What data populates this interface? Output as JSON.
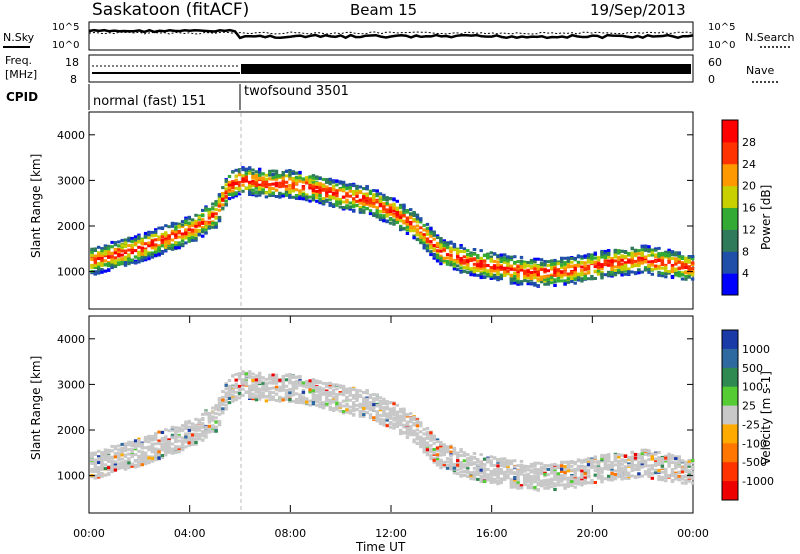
{
  "header": {
    "station": "Saskatoon (fitACF)",
    "beam": "Beam 15",
    "date": "19/Sep/2013"
  },
  "noise_panel": {
    "left_label": "N.Sky",
    "right_label": "N.Search",
    "left_ticks": [
      "10^5",
      "10^0"
    ],
    "right_ticks": [
      "10^5",
      "10^0"
    ]
  },
  "freq_panel": {
    "left_label_1": "Freq.",
    "left_label_2": "[MHz]",
    "left_ticks": [
      "18",
      "8"
    ],
    "right_label": "Nave",
    "right_ticks": [
      "60",
      "0"
    ]
  },
  "cpid_panel": {
    "label": "CPID",
    "segments": [
      {
        "name": "normal (fast) 151",
        "start_hour": 0,
        "end_hour": 6
      },
      {
        "name": "twofsound 3501",
        "start_hour": 6,
        "end_hour": 24
      }
    ]
  },
  "chart_data": [
    {
      "type": "heatmap",
      "name": "power",
      "ylabel": "Slant Range [km]",
      "yticks": [
        "1000",
        "2000",
        "3000",
        "4000"
      ],
      "ylim": [
        180,
        4500
      ],
      "xlim": [
        0,
        24
      ],
      "colorbar": {
        "label": "Power [dB]",
        "ticks": [
          "4",
          "8",
          "12",
          "16",
          "20",
          "24",
          "28"
        ],
        "range": [
          0,
          30
        ],
        "colors": [
          "#0000ff",
          "#1f4fa8",
          "#2e7a5a",
          "#33aa33",
          "#c8d000",
          "#ff9900",
          "#ff3300",
          "#ff0000"
        ]
      },
      "echo_band": {
        "hours": [
          0,
          1,
          2,
          3,
          4,
          5,
          5.5,
          6,
          7,
          8,
          9,
          10,
          11,
          12,
          13,
          13.5,
          14,
          15,
          16,
          17,
          18,
          19,
          20,
          21,
          22,
          23,
          24
        ],
        "range_km": [
          1250,
          1400,
          1550,
          1750,
          1950,
          2300,
          2900,
          3050,
          2950,
          2950,
          2850,
          2700,
          2600,
          2350,
          2000,
          1700,
          1450,
          1250,
          1150,
          1050,
          1000,
          1050,
          1150,
          1250,
          1300,
          1200,
          1100
        ]
      }
    },
    {
      "type": "heatmap",
      "name": "velocity",
      "ylabel": "Slant Range [km]",
      "yticks": [
        "1000",
        "2000",
        "3000",
        "4000"
      ],
      "ylim": [
        180,
        4500
      ],
      "xlim": [
        0,
        24
      ],
      "xticks": [
        "00:00",
        "04:00",
        "08:00",
        "12:00",
        "16:00",
        "20:00",
        "00:00"
      ],
      "xlabel": "Time UT",
      "colorbar": {
        "label": "Velocity [m s-1]",
        "ticks": [
          "1000",
          "500",
          "100",
          "25",
          "-25",
          "-100",
          "-500",
          "-1000"
        ],
        "colors": [
          "#1a3aa8",
          "#2e6aa0",
          "#2e8a50",
          "#55cc33",
          "#c8c8c8",
          "#ffaa00",
          "#ff7700",
          "#ff3300",
          "#ee0000"
        ]
      }
    }
  ]
}
